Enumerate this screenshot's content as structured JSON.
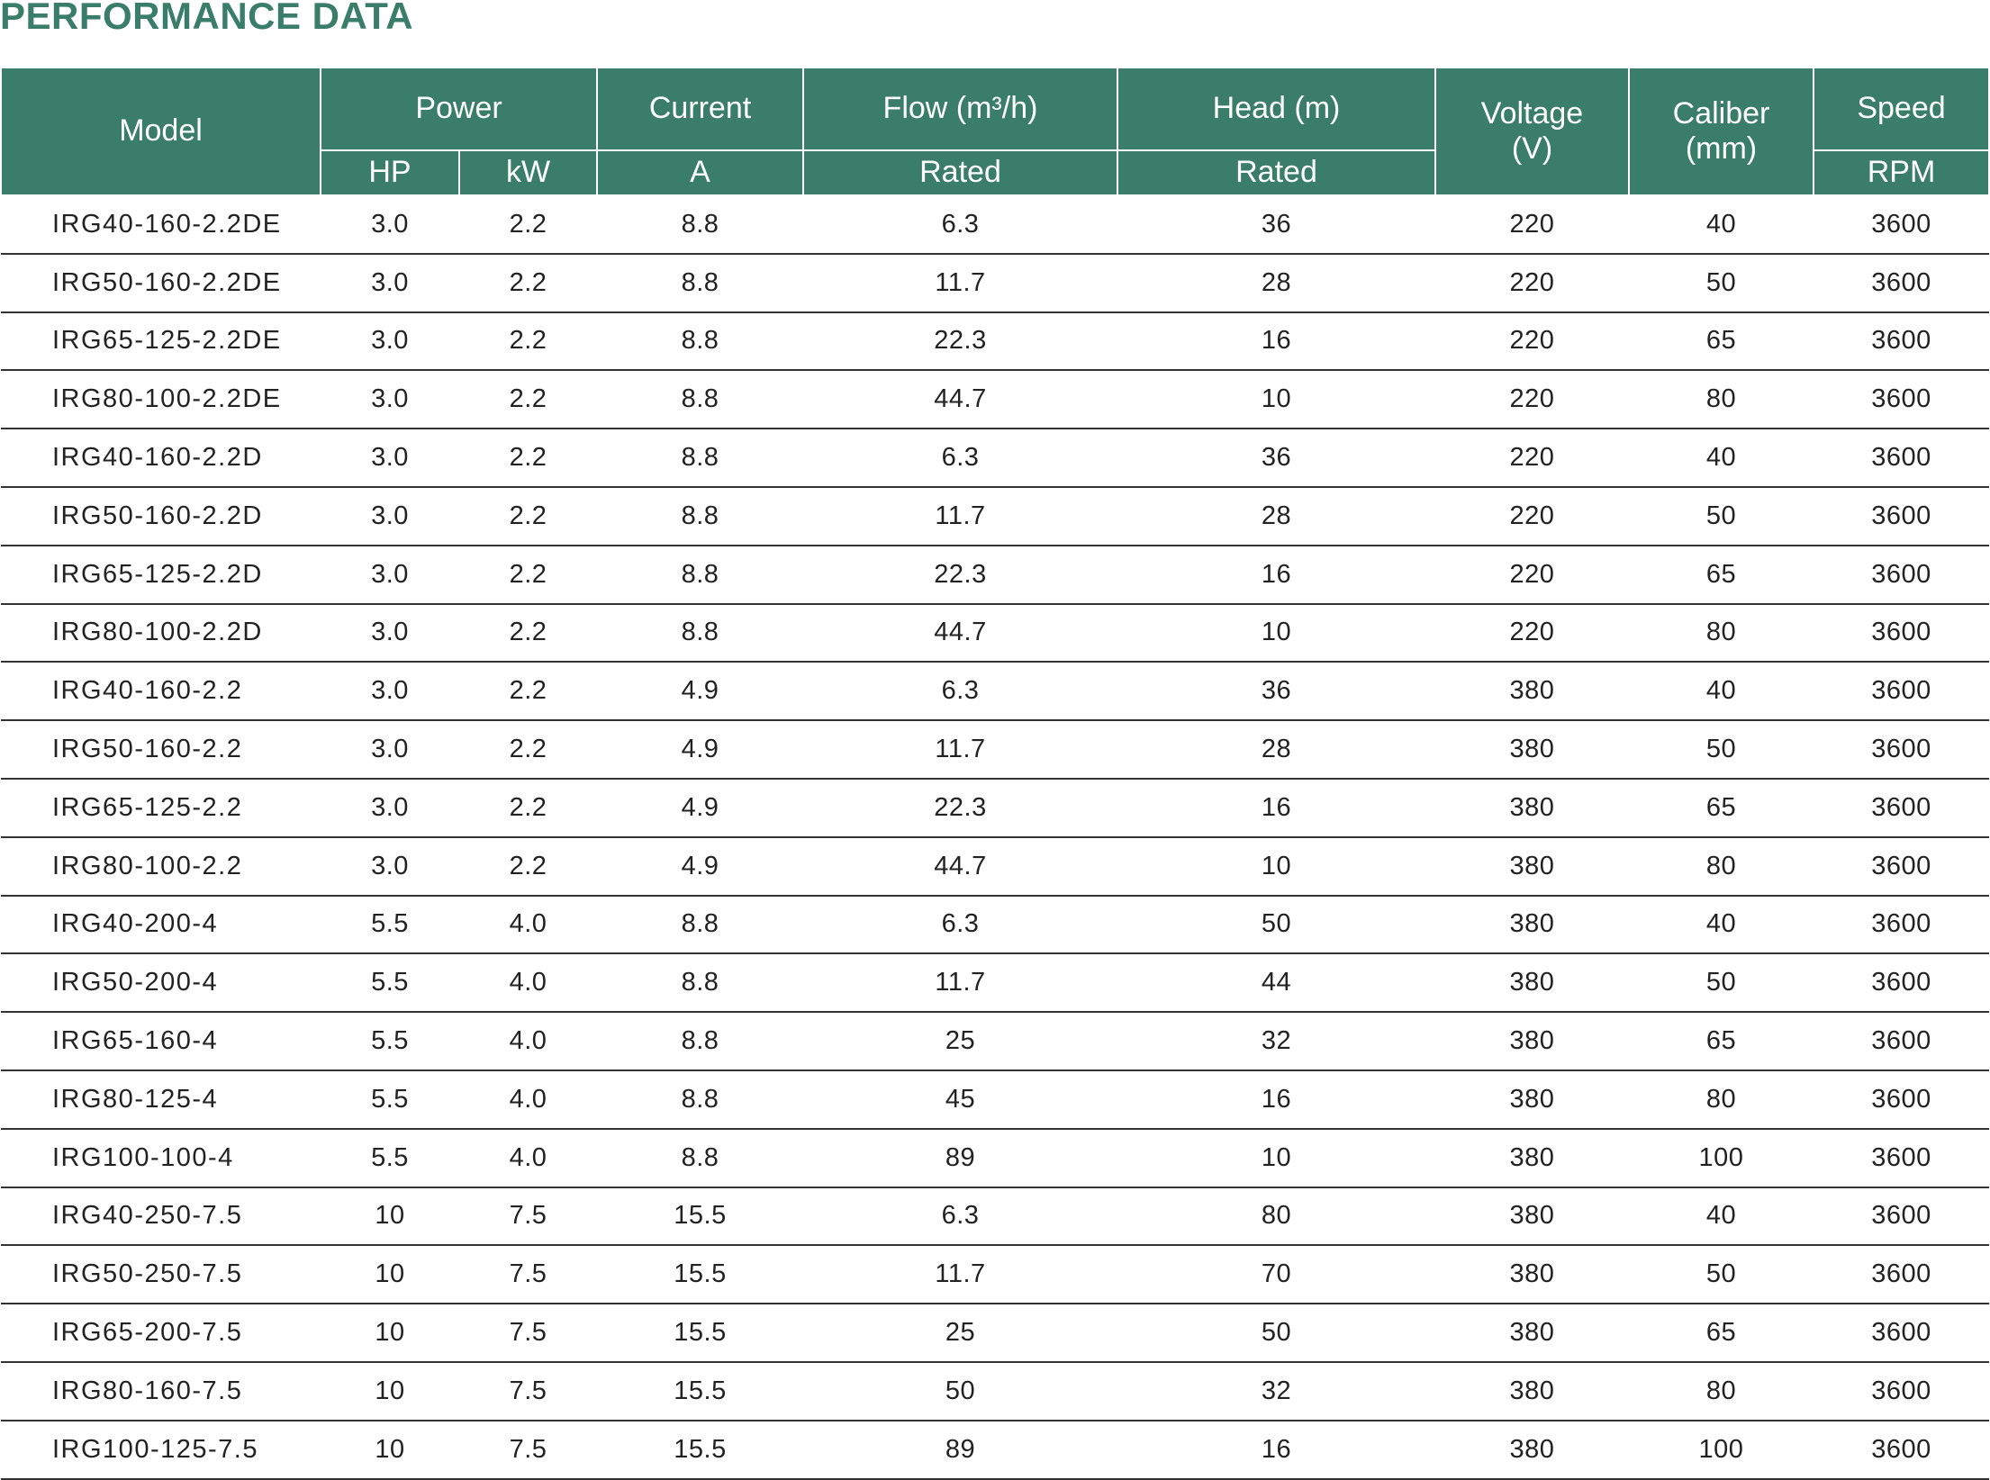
{
  "title": "PERFORMANCE DATA",
  "table": {
    "header": {
      "model": "Model",
      "power": "Power",
      "current": "Current",
      "flow": "Flow (m³/h)",
      "head": "Head (m)",
      "voltage": [
        "Voltage",
        "(V)"
      ],
      "caliber": [
        "Caliber",
        "(mm)"
      ],
      "speed": "Speed",
      "hp": "HP",
      "kw": "kW",
      "a": "A",
      "flow_sub": "Rated",
      "head_sub": "Rated",
      "rpm": "RPM"
    },
    "rows": [
      [
        "IRG40-160-2.2DE",
        "3.0",
        "2.2",
        "8.8",
        "6.3",
        "36",
        "220",
        "40",
        "3600"
      ],
      [
        "IRG50-160-2.2DE",
        "3.0",
        "2.2",
        "8.8",
        "11.7",
        "28",
        "220",
        "50",
        "3600"
      ],
      [
        "IRG65-125-2.2DE",
        "3.0",
        "2.2",
        "8.8",
        "22.3",
        "16",
        "220",
        "65",
        "3600"
      ],
      [
        "IRG80-100-2.2DE",
        "3.0",
        "2.2",
        "8.8",
        "44.7",
        "10",
        "220",
        "80",
        "3600"
      ],
      [
        "IRG40-160-2.2D",
        "3.0",
        "2.2",
        "8.8",
        "6.3",
        "36",
        "220",
        "40",
        "3600"
      ],
      [
        "IRG50-160-2.2D",
        "3.0",
        "2.2",
        "8.8",
        "11.7",
        "28",
        "220",
        "50",
        "3600"
      ],
      [
        "IRG65-125-2.2D",
        "3.0",
        "2.2",
        "8.8",
        "22.3",
        "16",
        "220",
        "65",
        "3600"
      ],
      [
        "IRG80-100-2.2D",
        "3.0",
        "2.2",
        "8.8",
        "44.7",
        "10",
        "220",
        "80",
        "3600"
      ],
      [
        "IRG40-160-2.2",
        "3.0",
        "2.2",
        "4.9",
        "6.3",
        "36",
        "380",
        "40",
        "3600"
      ],
      [
        "IRG50-160-2.2",
        "3.0",
        "2.2",
        "4.9",
        "11.7",
        "28",
        "380",
        "50",
        "3600"
      ],
      [
        "IRG65-125-2.2",
        "3.0",
        "2.2",
        "4.9",
        "22.3",
        "16",
        "380",
        "65",
        "3600"
      ],
      [
        "IRG80-100-2.2",
        "3.0",
        "2.2",
        "4.9",
        "44.7",
        "10",
        "380",
        "80",
        "3600"
      ],
      [
        "IRG40-200-4",
        "5.5",
        "4.0",
        "8.8",
        "6.3",
        "50",
        "380",
        "40",
        "3600"
      ],
      [
        "IRG50-200-4",
        "5.5",
        "4.0",
        "8.8",
        "11.7",
        "44",
        "380",
        "50",
        "3600"
      ],
      [
        "IRG65-160-4",
        "5.5",
        "4.0",
        "8.8",
        "25",
        "32",
        "380",
        "65",
        "3600"
      ],
      [
        "IRG80-125-4",
        "5.5",
        "4.0",
        "8.8",
        "45",
        "16",
        "380",
        "80",
        "3600"
      ],
      [
        "IRG100-100-4",
        "5.5",
        "4.0",
        "8.8",
        "89",
        "10",
        "380",
        "100",
        "3600"
      ],
      [
        "IRG40-250-7.5",
        "10",
        "7.5",
        "15.5",
        "6.3",
        "80",
        "380",
        "40",
        "3600"
      ],
      [
        "IRG50-250-7.5",
        "10",
        "7.5",
        "15.5",
        "11.7",
        "70",
        "380",
        "50",
        "3600"
      ],
      [
        "IRG65-200-7.5",
        "10",
        "7.5",
        "15.5",
        "25",
        "50",
        "380",
        "65",
        "3600"
      ],
      [
        "IRG80-160-7.5",
        "10",
        "7.5",
        "15.5",
        "50",
        "32",
        "380",
        "80",
        "3600"
      ],
      [
        "IRG100-125-7.5",
        "10",
        "7.5",
        "15.5",
        "89",
        "16",
        "380",
        "100",
        "3600"
      ]
    ]
  }
}
